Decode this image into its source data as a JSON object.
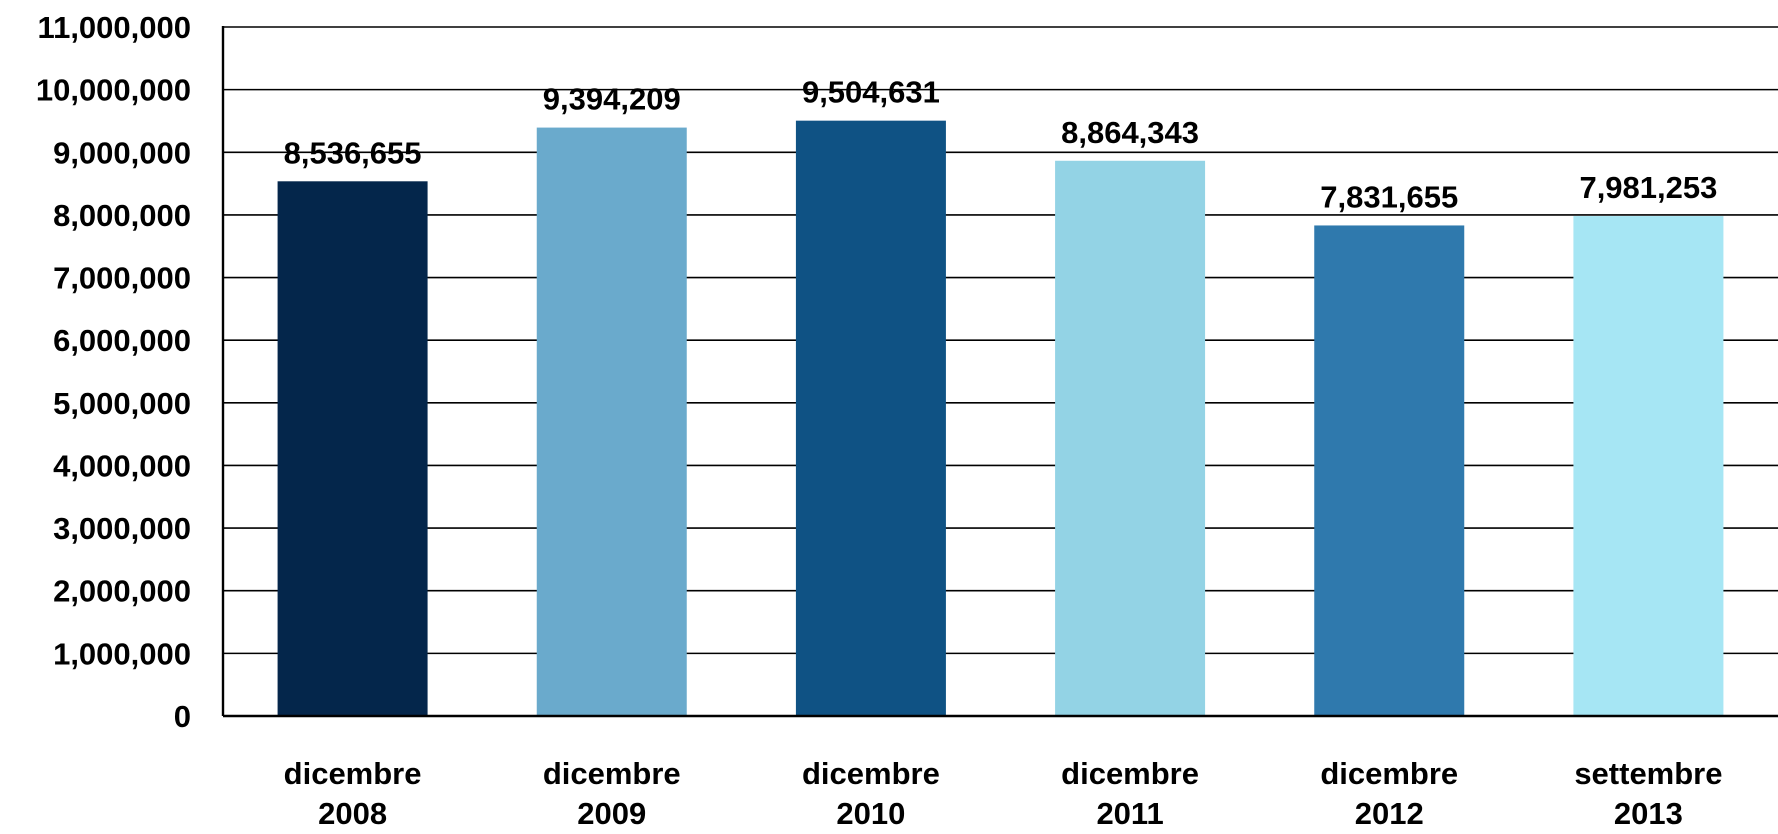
{
  "chart_data": {
    "type": "bar",
    "categories": [
      [
        "dicembre",
        "2008"
      ],
      [
        "dicembre",
        "2009"
      ],
      [
        "dicembre",
        "2010"
      ],
      [
        "dicembre",
        "2011"
      ],
      [
        "dicembre",
        "2012"
      ],
      [
        "settembre",
        "2013"
      ]
    ],
    "values": [
      8536655,
      9394209,
      9504631,
      8864343,
      7831655,
      7981253
    ],
    "data_labels": [
      "8,536,655",
      "9,394,209",
      "9,504,631",
      "8,864,343",
      "7,831,655",
      "7,981,253"
    ],
    "bar_colors": [
      "#04264b",
      "#6aaacc",
      "#0f5284",
      "#93d3e5",
      "#2f79ad",
      "#a6e6f4"
    ],
    "ylim": [
      0,
      11000000
    ],
    "ytick_step": 1000000,
    "yticks": [
      "0",
      "1,000,000",
      "2,000,000",
      "3,000,000",
      "4,000,000",
      "5,000,000",
      "6,000,000",
      "7,000,000",
      "8,000,000",
      "9,000,000",
      "10,000,000",
      "11,000,000"
    ],
    "grid": true,
    "legend": "none",
    "title": "",
    "xlabel": "",
    "ylabel": ""
  }
}
